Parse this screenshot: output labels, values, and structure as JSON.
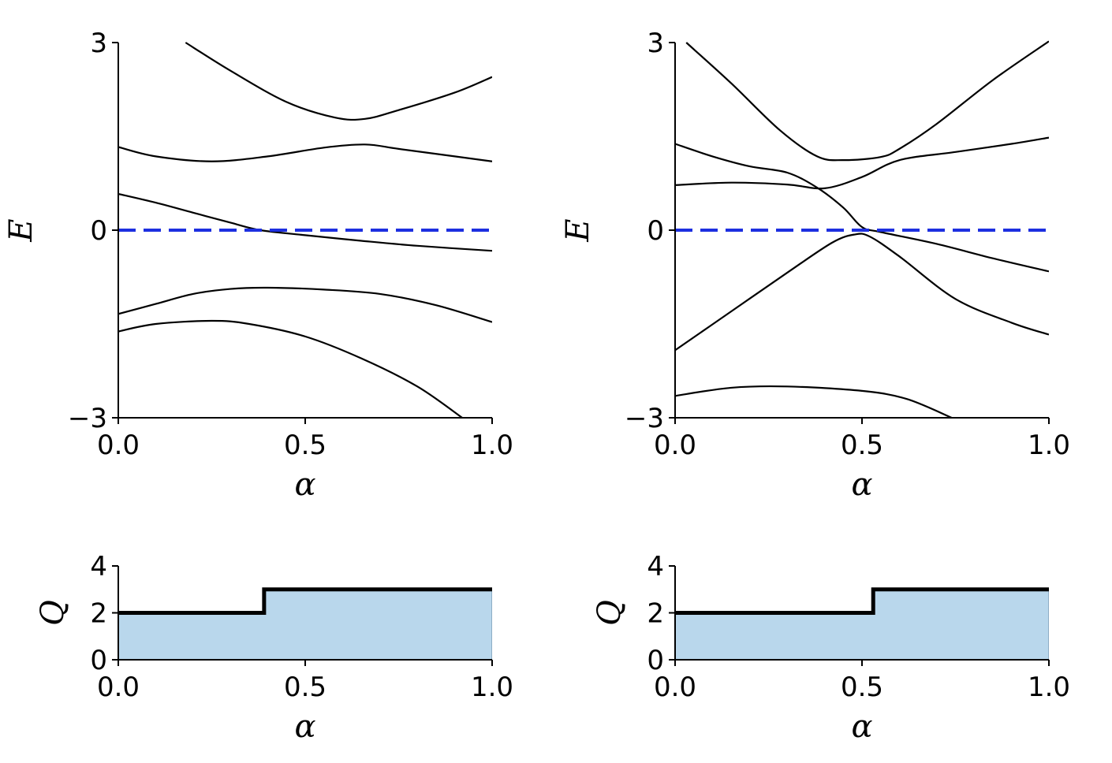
{
  "colors": {
    "band": "#000000",
    "reference": "#1d2fe0",
    "fill": "#b9d7ec",
    "step": "#000000"
  },
  "chart_data": [
    {
      "type": "line",
      "panel": "top-left",
      "xlabel": "α",
      "ylabel": "E",
      "xlim": [
        0,
        1
      ],
      "ylim": [
        -3,
        3
      ],
      "xticks": [
        "0.0",
        "0.5",
        "1.0"
      ],
      "yticks": [
        "−3",
        "0",
        "3"
      ],
      "reference_line": {
        "y": 0,
        "style": "dashed"
      },
      "series": [
        {
          "points": [
            [
              0.18,
              3.0
            ],
            [
              0.3,
              2.55
            ],
            [
              0.45,
              2.05
            ],
            [
              0.58,
              1.8
            ],
            [
              0.66,
              1.78
            ],
            [
              0.75,
              1.92
            ],
            [
              0.9,
              2.2
            ],
            [
              1.0,
              2.45
            ]
          ]
        },
        {
          "points": [
            [
              0.0,
              1.33
            ],
            [
              0.1,
              1.18
            ],
            [
              0.25,
              1.1
            ],
            [
              0.4,
              1.18
            ],
            [
              0.55,
              1.32
            ],
            [
              0.66,
              1.37
            ],
            [
              0.75,
              1.3
            ],
            [
              0.9,
              1.18
            ],
            [
              1.0,
              1.1
            ]
          ]
        },
        {
          "points": [
            [
              0.0,
              0.58
            ],
            [
              0.1,
              0.44
            ],
            [
              0.2,
              0.28
            ],
            [
              0.3,
              0.12
            ],
            [
              0.38,
              0.0
            ],
            [
              0.5,
              -0.08
            ],
            [
              0.65,
              -0.17
            ],
            [
              0.8,
              -0.25
            ],
            [
              1.0,
              -0.33
            ]
          ]
        },
        {
          "points": [
            [
              0.0,
              -1.34
            ],
            [
              0.1,
              -1.18
            ],
            [
              0.2,
              -1.02
            ],
            [
              0.3,
              -0.94
            ],
            [
              0.4,
              -0.92
            ],
            [
              0.55,
              -0.95
            ],
            [
              0.7,
              -1.02
            ],
            [
              0.85,
              -1.2
            ],
            [
              1.0,
              -1.47
            ]
          ]
        },
        {
          "points": [
            [
              0.0,
              -1.62
            ],
            [
              0.1,
              -1.5
            ],
            [
              0.25,
              -1.45
            ],
            [
              0.35,
              -1.5
            ],
            [
              0.5,
              -1.7
            ],
            [
              0.65,
              -2.05
            ],
            [
              0.8,
              -2.5
            ],
            [
              0.92,
              -3.0
            ]
          ]
        }
      ]
    },
    {
      "type": "line",
      "panel": "top-right",
      "xlabel": "α",
      "ylabel": "E",
      "xlim": [
        0,
        1
      ],
      "ylim": [
        -3,
        3
      ],
      "xticks": [
        "0.0",
        "0.5",
        "1.0"
      ],
      "yticks": [
        "−3",
        "0",
        "3"
      ],
      "reference_line": {
        "y": 0,
        "style": "dashed"
      },
      "series": [
        {
          "points": [
            [
              0.03,
              3.0
            ],
            [
              0.15,
              2.35
            ],
            [
              0.28,
              1.6
            ],
            [
              0.38,
              1.18
            ],
            [
              0.45,
              1.12
            ],
            [
              0.55,
              1.17
            ],
            [
              0.6,
              1.3
            ],
            [
              0.7,
              1.7
            ],
            [
              0.85,
              2.4
            ],
            [
              1.0,
              3.02
            ]
          ]
        },
        {
          "points": [
            [
              0.0,
              1.38
            ],
            [
              0.1,
              1.18
            ],
            [
              0.2,
              1.02
            ],
            [
              0.3,
              0.92
            ],
            [
              0.38,
              0.68
            ],
            [
              0.45,
              0.36
            ],
            [
              0.5,
              0.05
            ],
            [
              0.55,
              -0.03
            ],
            [
              0.7,
              -0.22
            ],
            [
              0.85,
              -0.45
            ],
            [
              1.0,
              -0.66
            ]
          ]
        },
        {
          "points": [
            [
              0.0,
              0.72
            ],
            [
              0.15,
              0.76
            ],
            [
              0.3,
              0.73
            ],
            [
              0.4,
              0.67
            ],
            [
              0.5,
              0.85
            ],
            [
              0.6,
              1.12
            ],
            [
              0.75,
              1.25
            ],
            [
              0.9,
              1.38
            ],
            [
              1.0,
              1.48
            ]
          ]
        },
        {
          "points": [
            [
              0.0,
              -1.92
            ],
            [
              0.15,
              -1.3
            ],
            [
              0.3,
              -0.68
            ],
            [
              0.42,
              -0.2
            ],
            [
              0.48,
              -0.07
            ],
            [
              0.52,
              -0.1
            ],
            [
              0.6,
              -0.42
            ],
            [
              0.75,
              -1.1
            ],
            [
              0.9,
              -1.48
            ],
            [
              1.0,
              -1.67
            ]
          ]
        },
        {
          "points": [
            [
              0.0,
              -2.65
            ],
            [
              0.15,
              -2.52
            ],
            [
              0.3,
              -2.5
            ],
            [
              0.5,
              -2.57
            ],
            [
              0.62,
              -2.7
            ],
            [
              0.74,
              -3.0
            ]
          ]
        }
      ]
    },
    {
      "type": "area",
      "panel": "bottom-left",
      "xlabel": "α",
      "ylabel": "Q",
      "xlim": [
        0,
        1
      ],
      "ylim": [
        0,
        4
      ],
      "xticks": [
        "0.0",
        "0.5",
        "1.0"
      ],
      "yticks": [
        "0",
        "2",
        "4"
      ],
      "steps": [
        [
          0.0,
          2
        ],
        [
          0.39,
          2
        ],
        [
          0.39,
          3
        ],
        [
          1.0,
          3
        ]
      ]
    },
    {
      "type": "area",
      "panel": "bottom-right",
      "xlabel": "α",
      "ylabel": "Q",
      "xlim": [
        0,
        1
      ],
      "ylim": [
        0,
        4
      ],
      "xticks": [
        "0.0",
        "0.5",
        "1.0"
      ],
      "yticks": [
        "0",
        "2",
        "4"
      ],
      "steps": [
        [
          0.0,
          2
        ],
        [
          0.53,
          2
        ],
        [
          0.53,
          3
        ],
        [
          1.0,
          3
        ]
      ]
    }
  ]
}
